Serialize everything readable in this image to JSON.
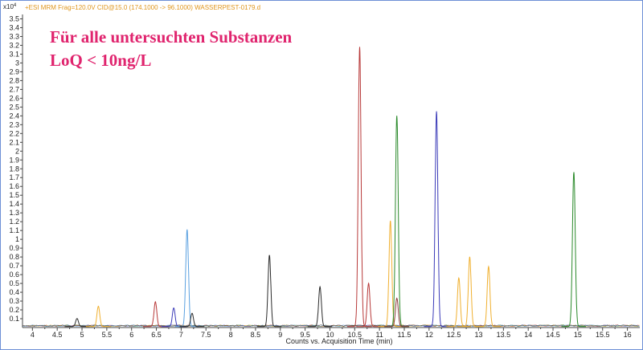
{
  "chart_data": {
    "type": "line",
    "header": "+ESI MRM Frag=120.0V CID@15.0 (174.1000 -> 96.1000) WASSERPEST-0179.d",
    "y_exponent": "x10",
    "y_exponent_power": "4",
    "xlabel": "Counts vs. Acquisition Time (min)",
    "xlim": [
      3.8,
      16.25
    ],
    "ylim": [
      0,
      3.55
    ],
    "x_ticks": [
      "4",
      "4.5",
      "5",
      "5.5",
      "6",
      "6.5",
      "7",
      "7.5",
      "8",
      "8.5",
      "9",
      "9.5",
      "10",
      "10.5",
      "11",
      "11.5",
      "12",
      "12.5",
      "13",
      "13.5",
      "14",
      "14.5",
      "15",
      "15.5",
      "16"
    ],
    "y_ticks": [
      "0.1",
      "0.2",
      "0.3",
      "0.4",
      "0.5",
      "0.6",
      "0.7",
      "0.8",
      "0.9",
      "1",
      "1.1",
      "1.2",
      "1.3",
      "1.4",
      "1.5",
      "1.6",
      "1.7",
      "1.8",
      "1.9",
      "2",
      "2.1",
      "2.2",
      "2.3",
      "2.4",
      "2.5",
      "2.6",
      "2.7",
      "2.8",
      "2.9",
      "3",
      "3.1",
      "3.2",
      "3.3",
      "3.4",
      "3.5"
    ],
    "annotation_line1": "Für alle untersuchten Substanzen",
    "annotation_line2": "LoQ < 10ng/L",
    "peaks": [
      {
        "color": "#2b2b2b",
        "rt": 4.9,
        "height": 0.09
      },
      {
        "color": "#f0b030",
        "rt": 5.33,
        "height": 0.23
      },
      {
        "color": "#b83a3a",
        "rt": 6.48,
        "height": 0.28
      },
      {
        "color": "#3a3ab8",
        "rt": 6.85,
        "height": 0.21
      },
      {
        "color": "#5aa0e0",
        "rt": 7.12,
        "height": 1.1
      },
      {
        "color": "#2b2b2b",
        "rt": 7.22,
        "height": 0.15
      },
      {
        "color": "#2b2b2b",
        "rt": 8.78,
        "height": 0.81
      },
      {
        "color": "#2b2b2b",
        "rt": 9.8,
        "height": 0.45
      },
      {
        "color": "#b83a3a",
        "rt": 10.6,
        "height": 3.17
      },
      {
        "color": "#b83a3a",
        "rt": 10.78,
        "height": 0.49
      },
      {
        "color": "#f0b030",
        "rt": 11.22,
        "height": 1.2
      },
      {
        "color": "#2b8a2b",
        "rt": 11.35,
        "height": 2.39
      },
      {
        "color": "#8a3a3a",
        "rt": 11.35,
        "height": 0.32
      },
      {
        "color": "#3a3ab8",
        "rt": 12.15,
        "height": 2.44
      },
      {
        "color": "#f0b030",
        "rt": 12.6,
        "height": 0.55
      },
      {
        "color": "#f0b030",
        "rt": 12.82,
        "height": 0.79
      },
      {
        "color": "#f0b030",
        "rt": 13.2,
        "height": 0.68
      },
      {
        "color": "#2b8a2b",
        "rt": 14.92,
        "height": 1.75
      }
    ]
  }
}
